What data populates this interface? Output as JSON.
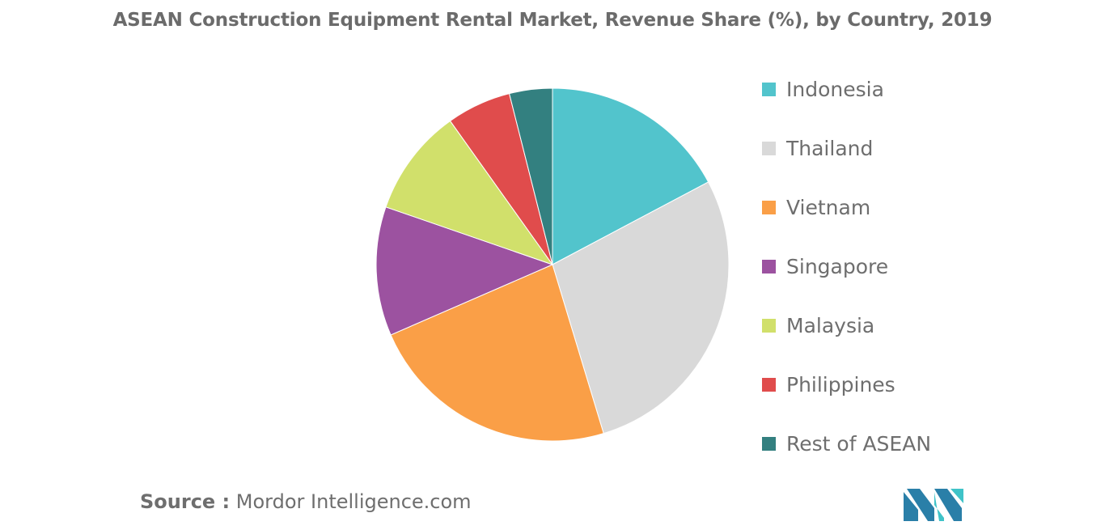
{
  "chart_data": {
    "type": "pie",
    "title": "ASEAN Construction Equipment Rental Market, Revenue Share (%), by Country, 2019",
    "categories": [
      "Indonesia",
      "Thailand",
      "Vietnam",
      "Singapore",
      "Malaysia",
      "Philippines",
      "Rest of ASEAN"
    ],
    "values": [
      17.5,
      28.5,
      23.5,
      12,
      10,
      6,
      4
    ],
    "colors": [
      "#52c4cc",
      "#d9d9d9",
      "#fa9f47",
      "#9c52a0",
      "#d1e06b",
      "#e04c4c",
      "#338080"
    ],
    "start_angle_deg": 0,
    "direction": "clockwise",
    "legend_position": "right"
  },
  "source": {
    "prefix": "Source :",
    "text": " Mordor Intelligence.com"
  },
  "logo": {
    "icon": "mordor-intelligence-logo-icon",
    "colors": [
      "#2a7fa8",
      "#3fc3c8"
    ]
  }
}
